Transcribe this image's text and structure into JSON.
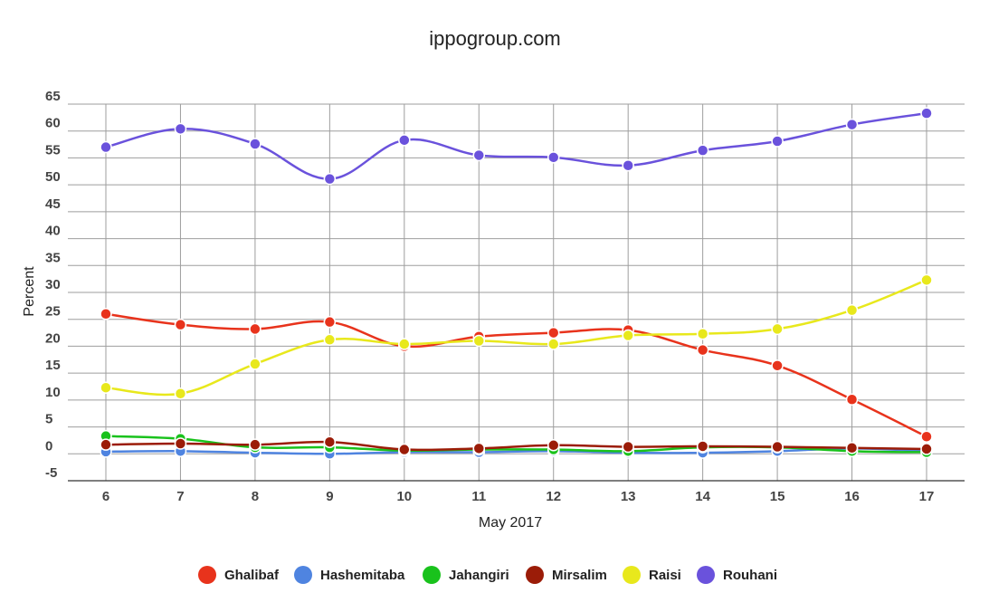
{
  "chart_data": {
    "type": "line",
    "title": "ippogroup.com",
    "xlabel": "May 2017",
    "ylabel": "Percent",
    "x": [
      6,
      7,
      8,
      9,
      10,
      11,
      12,
      13,
      14,
      15,
      16,
      17
    ],
    "x_tick_labels": [
      "6",
      "7",
      "8",
      "9",
      "10",
      "11",
      "12",
      "13",
      "14",
      "15",
      "16",
      "17"
    ],
    "ylim": [
      -5,
      65
    ],
    "y_ticks": [
      -5,
      0,
      5,
      10,
      15,
      20,
      25,
      30,
      35,
      40,
      45,
      50,
      55,
      60,
      65
    ],
    "grid": true,
    "legend_position": "bottom",
    "series": [
      {
        "name": "Ghalibaf",
        "color": "#e8331c",
        "values": [
          26.0,
          24.0,
          23.2,
          24.5,
          20.0,
          21.8,
          22.5,
          23.0,
          19.3,
          16.4,
          10.1,
          3.2
        ]
      },
      {
        "name": "Hashemitaba",
        "color": "#4f84e0",
        "values": [
          0.4,
          0.5,
          0.2,
          0.0,
          0.3,
          0.3,
          0.5,
          0.2,
          0.2,
          0.5,
          1.0,
          0.5
        ]
      },
      {
        "name": "Jahangiri",
        "color": "#19c21c",
        "values": [
          3.3,
          2.8,
          1.2,
          1.2,
          0.6,
          0.8,
          0.8,
          0.5,
          1.2,
          1.2,
          0.5,
          0.3
        ]
      },
      {
        "name": "Mirsalim",
        "color": "#9b1c08",
        "values": [
          1.7,
          1.9,
          1.7,
          2.2,
          0.8,
          1.0,
          1.6,
          1.3,
          1.4,
          1.3,
          1.1,
          0.9
        ]
      },
      {
        "name": "Raisi",
        "color": "#e8e81c",
        "values": [
          12.3,
          11.2,
          16.7,
          21.2,
          20.4,
          21.0,
          20.4,
          22.0,
          22.3,
          23.2,
          26.7,
          32.3
        ]
      },
      {
        "name": "Rouhani",
        "color": "#6a52dc",
        "values": [
          57.0,
          60.4,
          57.6,
          51.1,
          58.3,
          55.5,
          55.1,
          53.6,
          56.4,
          58.1,
          61.2,
          63.3
        ]
      }
    ]
  }
}
